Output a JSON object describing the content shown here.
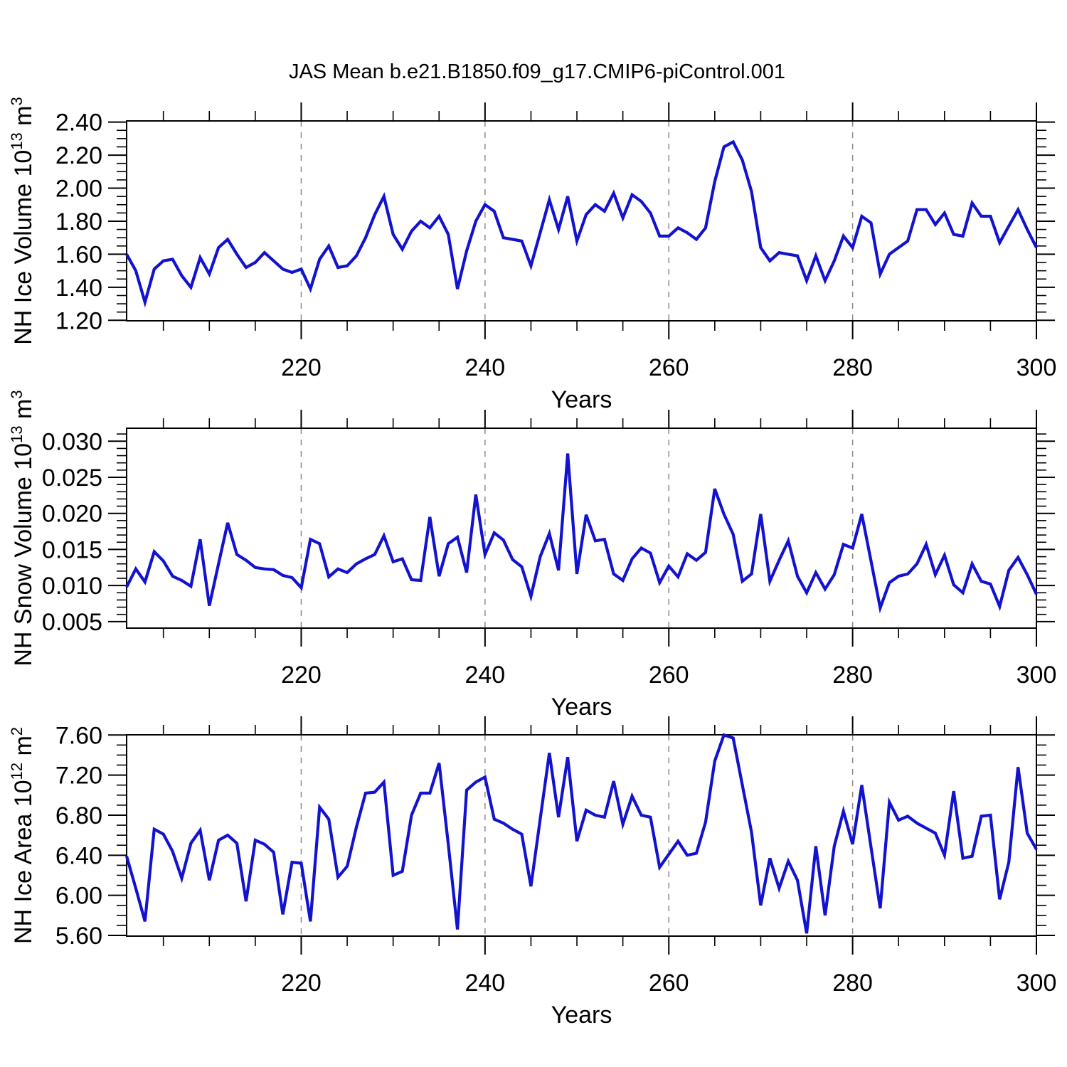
{
  "title": "JAS Mean b.e21.B1850.f09_g17.CMIP6-piControl.001",
  "line_color": "#1212cf",
  "grid_color": "#8a8a8a",
  "axis_color": "#000000",
  "chart_data": [
    {
      "type": "line",
      "series_name": "NH Ice Volume",
      "ylabel_parts": [
        {
          "t": "NH Ice Volume 10",
          "sup": false
        },
        {
          "t": "13",
          "sup": true
        },
        {
          "t": " m",
          "sup": false
        },
        {
          "t": "3",
          "sup": true
        }
      ],
      "xlabel": "Years",
      "xlim": [
        201,
        300
      ],
      "x_start": 201,
      "xticks": [
        220,
        240,
        260,
        280,
        300
      ],
      "xtick_labels": [
        "220",
        "240",
        "260",
        "280",
        "300"
      ],
      "x_minor_step": 5,
      "grid_x": [
        220,
        240,
        260,
        280
      ],
      "ylim": [
        1.197,
        2.407
      ],
      "yticks": [
        1.2,
        1.4,
        1.6,
        1.8,
        2.0,
        2.2,
        2.4
      ],
      "ytick_labels": [
        "1.20",
        "1.40",
        "1.60",
        "1.80",
        "2.00",
        "2.20",
        "2.40"
      ],
      "y_minor_step": 0.05,
      "values": [
        1.6,
        1.5,
        1.31,
        1.51,
        1.56,
        1.57,
        1.47,
        1.4,
        1.58,
        1.48,
        1.64,
        1.69,
        1.6,
        1.52,
        1.55,
        1.61,
        1.56,
        1.51,
        1.49,
        1.51,
        1.39,
        1.57,
        1.65,
        1.52,
        1.53,
        1.59,
        1.7,
        1.84,
        1.95,
        1.72,
        1.63,
        1.74,
        1.8,
        1.76,
        1.83,
        1.72,
        1.39,
        1.62,
        1.8,
        1.9,
        1.86,
        1.7,
        1.69,
        1.68,
        1.53,
        1.73,
        1.93,
        1.75,
        1.95,
        1.68,
        1.84,
        1.9,
        1.86,
        1.97,
        1.82,
        1.96,
        1.92,
        1.85,
        1.71,
        1.71,
        1.76,
        1.73,
        1.69,
        1.76,
        2.04,
        2.25,
        2.28,
        2.17,
        1.98,
        1.64,
        1.56,
        1.61,
        1.6,
        1.59,
        1.44,
        1.59,
        1.44,
        1.56,
        1.71,
        1.64,
        1.83,
        1.79,
        1.48,
        1.6,
        1.64,
        1.68,
        1.87,
        1.87,
        1.78,
        1.85,
        1.72,
        1.71,
        1.91,
        1.83,
        1.83,
        1.67,
        1.77,
        1.87,
        1.75,
        1.64
      ]
    },
    {
      "type": "line",
      "series_name": "NH Snow Volume",
      "ylabel_parts": [
        {
          "t": "NH Snow Volume 10",
          "sup": false
        },
        {
          "t": "13",
          "sup": true
        },
        {
          "t": " m",
          "sup": false
        },
        {
          "t": "3",
          "sup": true
        }
      ],
      "xlabel": "Years",
      "xlim": [
        201,
        300
      ],
      "x_start": 201,
      "xticks": [
        220,
        240,
        260,
        280,
        300
      ],
      "xtick_labels": [
        "220",
        "240",
        "260",
        "280",
        "300"
      ],
      "x_minor_step": 5,
      "grid_x": [
        220,
        240,
        260,
        280
      ],
      "ylim": [
        0.0041,
        0.0318
      ],
      "yticks": [
        0.005,
        0.01,
        0.015,
        0.02,
        0.025,
        0.03
      ],
      "ytick_labels": [
        "0.005",
        "0.010",
        "0.015",
        "0.020",
        "0.025",
        "0.030"
      ],
      "y_minor_step": 0.001,
      "values": [
        0.0098,
        0.0123,
        0.0105,
        0.0147,
        0.0134,
        0.0113,
        0.0107,
        0.0099,
        0.0164,
        0.0072,
        0.013,
        0.0187,
        0.0143,
        0.0135,
        0.0125,
        0.0123,
        0.0122,
        0.0114,
        0.0111,
        0.0097,
        0.0164,
        0.0158,
        0.0112,
        0.0123,
        0.0118,
        0.013,
        0.0137,
        0.0143,
        0.0169,
        0.0133,
        0.0137,
        0.0108,
        0.0107,
        0.0195,
        0.0113,
        0.0158,
        0.0167,
        0.0118,
        0.0226,
        0.0143,
        0.0173,
        0.0163,
        0.0136,
        0.0126,
        0.0085,
        0.014,
        0.0172,
        0.0121,
        0.0283,
        0.0116,
        0.0198,
        0.0162,
        0.0164,
        0.0116,
        0.0107,
        0.0137,
        0.0152,
        0.0145,
        0.0104,
        0.0127,
        0.0112,
        0.0144,
        0.0135,
        0.0146,
        0.0234,
        0.0199,
        0.0171,
        0.0106,
        0.0116,
        0.0199,
        0.0106,
        0.0135,
        0.0162,
        0.0113,
        0.009,
        0.0118,
        0.0095,
        0.0115,
        0.0157,
        0.0152,
        0.0199,
        0.0134,
        0.0069,
        0.0104,
        0.0113,
        0.0116,
        0.013,
        0.0157,
        0.0115,
        0.0142,
        0.0101,
        0.009,
        0.013,
        0.0106,
        0.0102,
        0.0071,
        0.0121,
        0.0139,
        0.0115,
        0.0088
      ]
    },
    {
      "type": "line",
      "series_name": "NH Ice Area",
      "ylabel_parts": [
        {
          "t": "NH Ice Area 10",
          "sup": false
        },
        {
          "t": "12",
          "sup": true
        },
        {
          "t": " m",
          "sup": false
        },
        {
          "t": "2",
          "sup": true
        }
      ],
      "xlabel": "Years",
      "xlim": [
        201,
        300
      ],
      "x_start": 201,
      "xticks": [
        220,
        240,
        260,
        280,
        300
      ],
      "xtick_labels": [
        "220",
        "240",
        "260",
        "280",
        "300"
      ],
      "x_minor_step": 5,
      "grid_x": [
        220,
        240,
        260,
        280
      ],
      "ylim": [
        5.593,
        7.602
      ],
      "yticks": [
        5.6,
        6.0,
        6.4,
        6.8,
        7.2,
        7.6
      ],
      "ytick_labels": [
        "5.60",
        "6.00",
        "6.40",
        "6.80",
        "7.20",
        "7.60"
      ],
      "y_minor_step": 0.1,
      "values": [
        6.39,
        6.07,
        5.74,
        6.66,
        6.61,
        6.44,
        6.17,
        6.52,
        6.65,
        6.15,
        6.55,
        6.6,
        6.52,
        5.94,
        6.55,
        6.51,
        6.43,
        5.81,
        6.33,
        6.32,
        5.74,
        6.88,
        6.76,
        6.18,
        6.29,
        6.68,
        7.02,
        7.03,
        7.13,
        6.2,
        6.24,
        6.8,
        7.02,
        7.02,
        7.32,
        6.51,
        5.66,
        7.05,
        7.13,
        7.18,
        6.76,
        6.72,
        6.66,
        6.61,
        6.09,
        6.76,
        7.42,
        6.78,
        7.38,
        6.54,
        6.85,
        6.8,
        6.78,
        7.14,
        6.71,
        6.99,
        6.8,
        6.78,
        6.28,
        6.41,
        6.54,
        6.4,
        6.42,
        6.73,
        7.34,
        7.6,
        7.57,
        7.1,
        6.63,
        5.9,
        6.37,
        6.07,
        6.34,
        6.15,
        5.62,
        6.49,
        5.8,
        6.49,
        6.84,
        6.51,
        7.1,
        6.48,
        5.87,
        6.93,
        6.75,
        6.79,
        6.72,
        6.67,
        6.62,
        6.4,
        7.04,
        6.37,
        6.39,
        6.79,
        6.8,
        5.96,
        6.33,
        7.28,
        6.62,
        6.46
      ]
    }
  ]
}
